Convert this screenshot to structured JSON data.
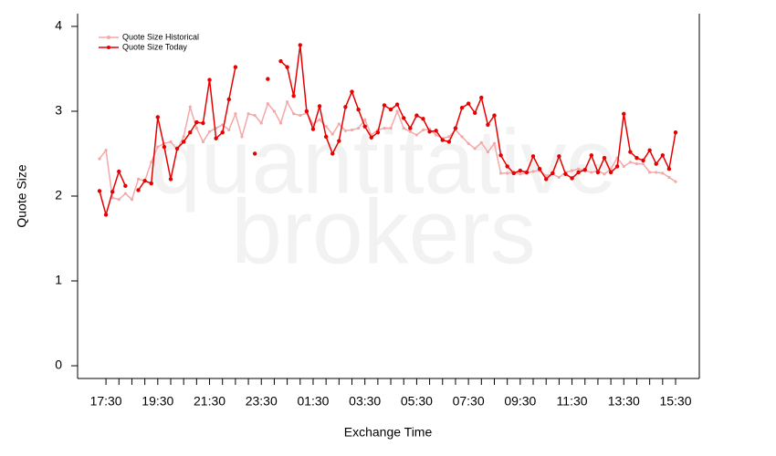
{
  "chart_data": {
    "type": "line",
    "watermark": [
      "quantitative",
      "brokers"
    ],
    "x_label": "Exchange Time",
    "y_label": "Quote Size",
    "categories": [
      null,
      "17:30",
      null,
      null,
      null,
      null,
      null,
      null,
      null,
      "19:30",
      null,
      null,
      null,
      null,
      null,
      null,
      null,
      "21:30",
      null,
      null,
      null,
      null,
      null,
      null,
      null,
      "23:30",
      null,
      null,
      null,
      null,
      null,
      null,
      null,
      "01:30",
      null,
      null,
      null,
      null,
      null,
      null,
      null,
      "03:30",
      null,
      null,
      null,
      null,
      null,
      null,
      null,
      "05:30",
      null,
      null,
      null,
      null,
      null,
      null,
      null,
      "07:30",
      null,
      null,
      null,
      null,
      null,
      null,
      null,
      "09:30",
      null,
      null,
      null,
      null,
      null,
      null,
      null,
      "11:30",
      null,
      null,
      null,
      null,
      null,
      null,
      null,
      "13:30",
      null,
      null,
      null,
      null,
      null,
      null,
      null,
      "15:30"
    ],
    "series": [
      {
        "name": "Quote Size Historical",
        "color": "#f4a8a8",
        "values": [
          2.44,
          2.54,
          1.98,
          1.96,
          2.03,
          1.96,
          2.2,
          2.18,
          2.4,
          2.58,
          2.62,
          2.64,
          2.55,
          2.7,
          3.05,
          2.8,
          2.64,
          2.76,
          2.8,
          2.84,
          2.78,
          2.97,
          2.7,
          2.97,
          2.95,
          2.86,
          3.09,
          3.0,
          2.86,
          3.11,
          2.97,
          2.95,
          2.98,
          2.85,
          2.9,
          2.82,
          2.73,
          2.85,
          2.77,
          2.78,
          2.8,
          2.9,
          2.72,
          2.78,
          2.8,
          2.8,
          3.0,
          2.8,
          2.76,
          2.72,
          2.78,
          2.79,
          2.72,
          2.68,
          2.7,
          2.78,
          2.7,
          2.62,
          2.56,
          2.63,
          2.52,
          2.62,
          2.27,
          2.27,
          2.28,
          2.26,
          2.27,
          2.29,
          2.3,
          2.24,
          2.26,
          2.22,
          2.28,
          2.3,
          2.32,
          2.3,
          2.28,
          2.3,
          2.26,
          2.32,
          2.45,
          2.35,
          2.4,
          2.38,
          2.38,
          2.28,
          2.28,
          2.27,
          2.22,
          2.17
        ]
      },
      {
        "name": "Quote Size Today",
        "color": "#e60000",
        "values": [
          2.06,
          1.78,
          2.05,
          2.29,
          2.12,
          null,
          2.07,
          2.18,
          2.15,
          2.93,
          2.58,
          2.2,
          2.56,
          2.64,
          2.75,
          2.87,
          2.86,
          3.37,
          2.68,
          2.75,
          3.14,
          3.52,
          null,
          null,
          2.5,
          null,
          3.38,
          null,
          3.59,
          3.52,
          3.18,
          3.78,
          3.0,
          2.79,
          3.06,
          2.7,
          2.5,
          2.65,
          3.05,
          3.23,
          3.02,
          2.82,
          2.69,
          2.75,
          3.07,
          3.02,
          3.08,
          2.92,
          2.8,
          2.95,
          2.91,
          2.76,
          2.77,
          2.66,
          2.64,
          2.8,
          3.04,
          3.09,
          2.98,
          3.16,
          2.84,
          2.95,
          2.48,
          2.35,
          2.27,
          2.3,
          2.28,
          2.47,
          2.32,
          2.2,
          2.27,
          2.47,
          2.26,
          2.21,
          2.28,
          2.31,
          2.48,
          2.28,
          2.45,
          2.28,
          2.35,
          2.97,
          2.52,
          2.45,
          2.42,
          2.54,
          2.38,
          2.48,
          2.32,
          2.75
        ]
      }
    ],
    "ylim": [
      -0.15,
      4.15
    ],
    "yticks": [
      0,
      1,
      2,
      3,
      4
    ]
  }
}
